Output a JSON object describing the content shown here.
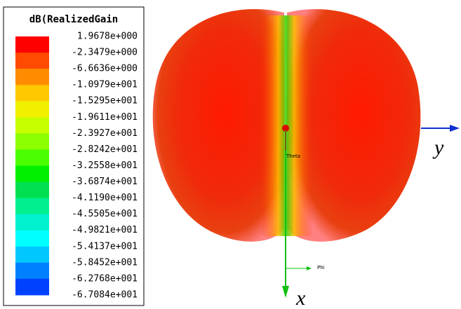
{
  "legend": {
    "title": "dB(RealizedGain",
    "labels": [
      "1.9678e+000",
      "-2.3479e+000",
      "-6.6636e+000",
      "-1.0979e+001",
      "-1.5295e+001",
      "-1.9611e+001",
      "-2.3927e+001",
      "-2.8242e+001",
      "-3.2558e+001",
      "-3.6874e+001",
      "-4.1190e+001",
      "-4.5505e+001",
      "-4.9821e+001",
      "-5.4137e+001",
      "-5.8452e+001",
      "-6.2768e+001",
      "-6.7084e+001"
    ],
    "colors": [
      "#ff0000",
      "#ff4a00",
      "#ff8c00",
      "#ffc800",
      "#f0f000",
      "#c8ff00",
      "#8cff00",
      "#4cff00",
      "#00f000",
      "#00e050",
      "#00f090",
      "#00f0d0",
      "#00ffff",
      "#00c8ff",
      "#0080ff",
      "#0040ff"
    ]
  },
  "axes": {
    "x": "x",
    "y": "y",
    "theta": "Theta",
    "phi": "Phi"
  }
}
